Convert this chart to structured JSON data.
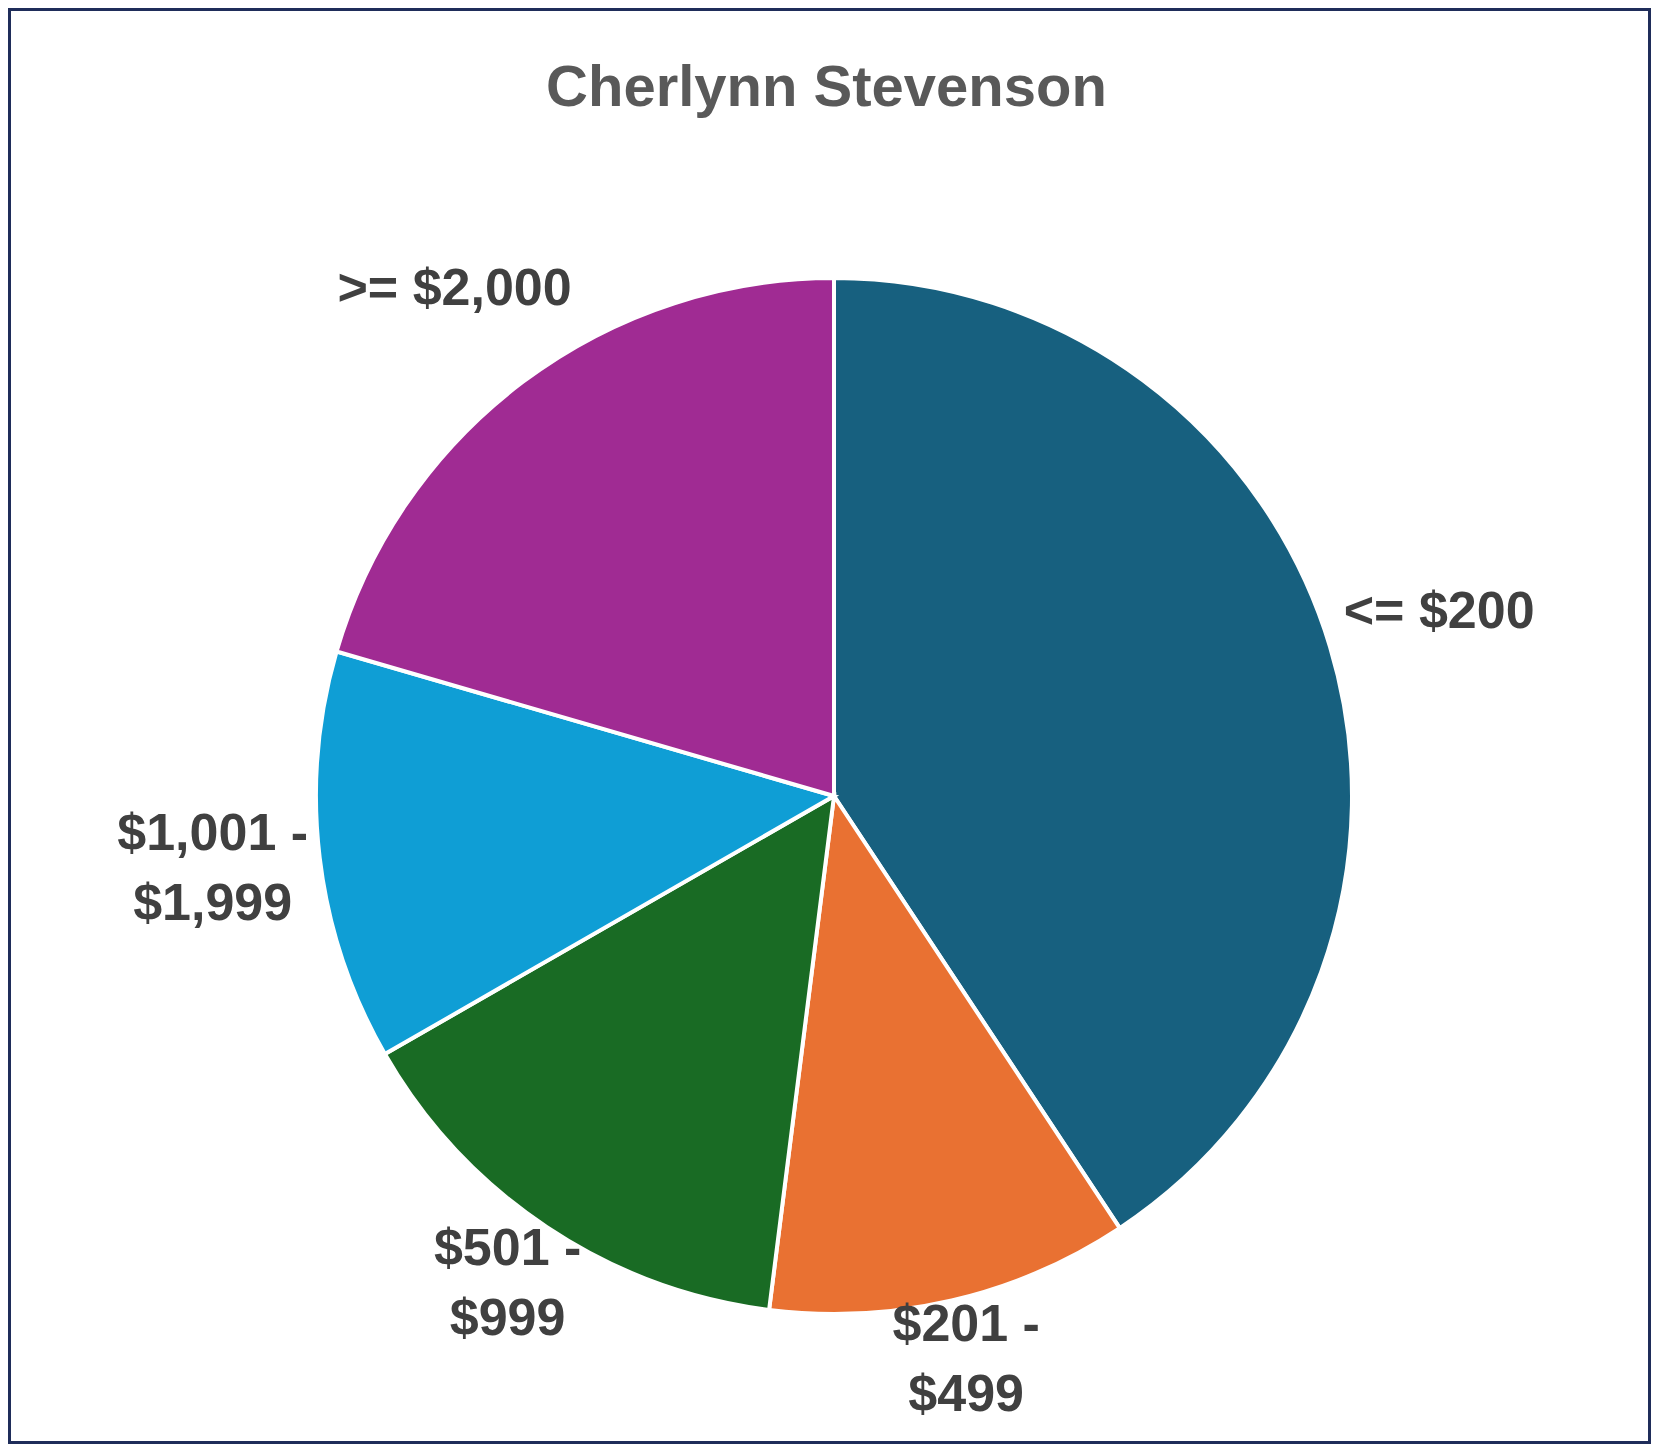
{
  "chart_data": {
    "type": "pie",
    "title": "Cherlynn Stevenson",
    "categories": [
      "<= $200",
      "$201 - $499",
      "$501 - $999",
      "$1,001 - $1,999",
      ">= $2,000"
    ],
    "values": [
      40.7,
      11.3,
      14.7,
      12.8,
      20.5
    ],
    "colors": [
      "#17607f",
      "#e97132",
      "#196b24",
      "#0f9ed5",
      "#a02b93"
    ]
  }
}
